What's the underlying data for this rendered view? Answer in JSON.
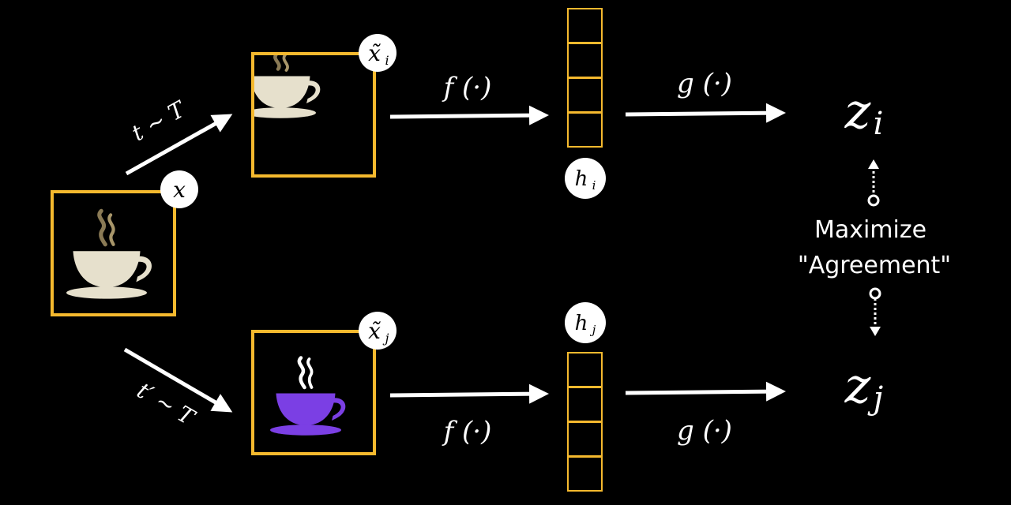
{
  "diagram": {
    "input_label": "x",
    "aug_top_label": "x̃",
    "aug_top_sub": "i",
    "aug_bottom_label": "x̃",
    "aug_bottom_sub": "j",
    "transform_top": "t ∼ T",
    "transform_bottom": "t′ ∼ T",
    "encoder_top": "f (·)",
    "encoder_bottom": "f (·)",
    "projector_top": "g (·)",
    "projector_bottom": "g (·)",
    "repr_top_label": "h",
    "repr_top_sub": "i",
    "repr_bottom_label": "h",
    "repr_bottom_sub": "j",
    "proj_top_label": "z",
    "proj_top_sub": "i",
    "proj_bottom_label": "z",
    "proj_bottom_sub": "j",
    "objective_line1": "Maximize",
    "objective_line2": "\"Agreement\""
  },
  "colors": {
    "background": "#000000",
    "frame": "#f5b92e",
    "cup_original": "#e6e0cc",
    "cup_augmented": "#7b3fe4",
    "arrow": "#ffffff",
    "badge": "#ffffff"
  },
  "icons": [
    "coffee-cup-icon"
  ]
}
